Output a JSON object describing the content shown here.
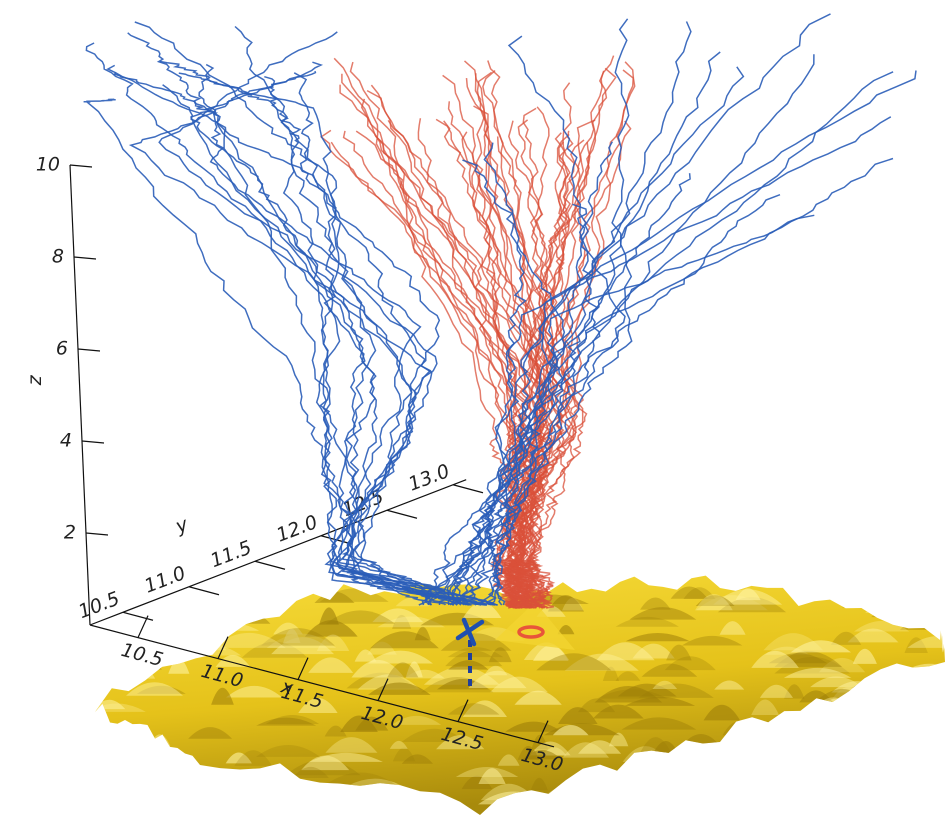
{
  "axes": {
    "z": {
      "label": "z",
      "lim": [
        0,
        10
      ],
      "ticks": [
        2,
        4,
        6,
        8,
        10
      ]
    },
    "y": {
      "label": "y",
      "lim": [
        10.25,
        13.1
      ],
      "ticks": [
        10.5,
        {
          "value": 11,
          "label": "11.0"
        },
        11.5,
        {
          "value": 12,
          "label": "12.0"
        },
        12.5,
        {
          "value": 13,
          "label": "13.0"
        }
      ]
    },
    "x": {
      "label": "x",
      "lim": [
        10.2,
        13.1
      ],
      "ticks": [
        10.5,
        {
          "value": 11,
          "label": "11.0"
        },
        11.5,
        {
          "value": 12,
          "label": "12.0"
        },
        12.5,
        {
          "value": 13,
          "label": "13.0"
        }
      ]
    }
  }
}
